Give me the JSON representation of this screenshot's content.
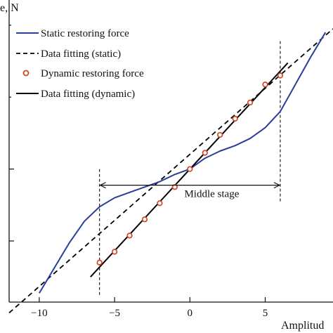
{
  "chart_data": {
    "type": "line",
    "xlabel": "Amplitud",
    "ylabel": "e, N",
    "xlim": [
      -12,
      9.5
    ],
    "ylim": [
      -3.7,
      4.7
    ],
    "x_ticks": [
      -10,
      -5,
      0,
      5
    ],
    "x_tick_labels": [
      "−10",
      "−5",
      "0",
      "5"
    ],
    "y_ticks": [
      -2,
      0,
      2,
      4
    ],
    "grid": false,
    "legend_position": "top-left",
    "legend": [
      {
        "label": "Static restoring force",
        "style": "solid",
        "color": "#2a3d9a"
      },
      {
        "label": "Data fitting (static)",
        "style": "dashed",
        "color": "#000000"
      },
      {
        "label": "Dynamic restoring force",
        "style": "circle-marker",
        "color": "#d0452a"
      },
      {
        "label": "Data fitting (dynamic)",
        "style": "solid",
        "color": "#000000"
      }
    ],
    "series": [
      {
        "name": "Static restoring force",
        "color": "#2a3d9a",
        "x": [
          -10,
          -9,
          -8,
          -7,
          -6,
          -5,
          -4,
          -3,
          -2,
          -1,
          0,
          1,
          2,
          3,
          4,
          5,
          6,
          7,
          8,
          9
        ],
        "y": [
          -3.45,
          -2.75,
          -2.05,
          -1.45,
          -1.05,
          -0.8,
          -0.65,
          -0.5,
          -0.35,
          -0.15,
          0,
          0.3,
          0.5,
          0.65,
          0.85,
          1.15,
          1.6,
          2.35,
          3.1,
          3.8
        ]
      },
      {
        "name": "Data fitting (static)",
        "color": "#000000",
        "x": [
          -12,
          9.5
        ],
        "y": [
          -4.0,
          3.9
        ]
      },
      {
        "name": "Dynamic restoring force",
        "color": "#d0452a",
        "x": [
          -6,
          -5,
          -4,
          -3,
          -2,
          -1,
          0,
          1,
          2,
          3,
          4,
          5,
          6
        ],
        "y": [
          -2.6,
          -2.3,
          -1.85,
          -1.4,
          -0.95,
          -0.5,
          0,
          0.45,
          0.95,
          1.4,
          1.85,
          2.35,
          2.6
        ]
      },
      {
        "name": "Data fitting (dynamic)",
        "color": "#000000",
        "x": [
          -6.6,
          6.5
        ],
        "y": [
          -3.0,
          2.95
        ]
      }
    ],
    "annotations": [
      {
        "text": "Middle stage",
        "x_range": [
          -6,
          6
        ],
        "y": -0.45,
        "text_x": 1.5,
        "text_y": -0.78
      }
    ],
    "vertical_markers": [
      {
        "x": -6,
        "y_range": [
          -3.5,
          0
        ]
      },
      {
        "x": 6,
        "y_range": [
          -0.9,
          3.6
        ]
      }
    ]
  }
}
